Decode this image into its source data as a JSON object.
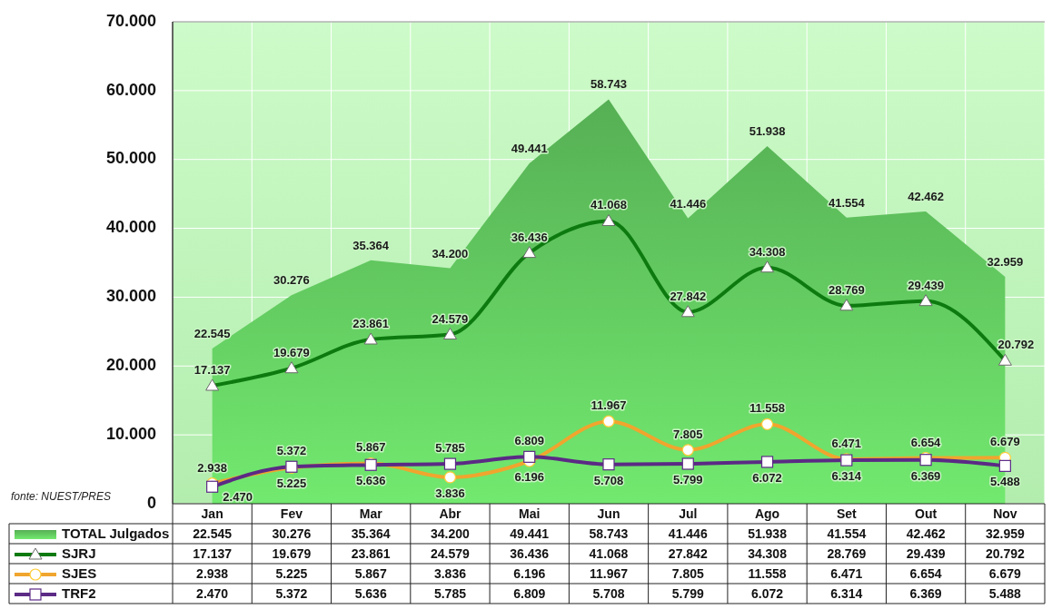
{
  "chart_data": {
    "type": "line",
    "categories": [
      "Jan",
      "Fev",
      "Mar",
      "Abr",
      "Mai",
      "Jun",
      "Jul",
      "Ago",
      "Set",
      "Out",
      "Nov"
    ],
    "ylim": [
      0,
      70000
    ],
    "yticks": [
      0,
      {
        "value": 10000,
        "label": "10.000"
      },
      {
        "value": 20000,
        "label": "20.000"
      },
      {
        "value": 30000,
        "label": "30.000"
      },
      {
        "value": 40000,
        "label": "40.000"
      },
      {
        "value": 50000,
        "label": "50.000"
      },
      {
        "value": 60000,
        "label": "60.000"
      },
      {
        "value": 70000,
        "label": "70.000"
      }
    ],
    "grid": true,
    "legend": "bottom",
    "annotations": [
      "fonte: NUEST/PRES"
    ],
    "series": [
      {
        "name": "TOTAL Julgados",
        "type": "area",
        "color": "#5cbc5a",
        "values": [
          22545,
          30276,
          35364,
          34200,
          49441,
          58743,
          41446,
          51938,
          41554,
          42462,
          32959
        ],
        "value_labels": [
          "22.545",
          "30.276",
          "35.364",
          "34.200",
          "49.441",
          "58.743",
          "41.446",
          "51.938",
          "41.554",
          "42.462",
          "32.959"
        ]
      },
      {
        "name": "SJRJ",
        "type": "line",
        "color": "#0d7a10",
        "marker": "triangle",
        "values": [
          17137,
          19679,
          23861,
          24579,
          36436,
          41068,
          27842,
          34308,
          28769,
          29439,
          20792
        ],
        "value_labels": [
          "17.137",
          "19.679",
          "23.861",
          "24.579",
          "36.436",
          "41.068",
          "27.842",
          "34.308",
          "28.769",
          "29.439",
          "20.792"
        ]
      },
      {
        "name": "SJES",
        "type": "line",
        "color": "#f0a52e",
        "marker": "circle",
        "values": [
          2938,
          5225,
          5867,
          3836,
          6196,
          11967,
          7805,
          11558,
          6471,
          6654,
          6679
        ],
        "value_labels": [
          "2.938",
          "5.225",
          "5.867",
          "3.836",
          "6.196",
          "11.967",
          "7.805",
          "11.558",
          "6.471",
          "6.654",
          "6.679"
        ]
      },
      {
        "name": "TRF2",
        "type": "line",
        "color": "#5b2a85",
        "marker": "square",
        "values": [
          2470,
          5372,
          5636,
          5785,
          6809,
          5708,
          5799,
          6072,
          6314,
          6369,
          5488
        ],
        "value_labels": [
          "2.470",
          "5.372",
          "5.636",
          "5.785",
          "6.809",
          "5.708",
          "5.799",
          "6.072",
          "6.314",
          "6.369",
          "5.488"
        ]
      }
    ]
  }
}
